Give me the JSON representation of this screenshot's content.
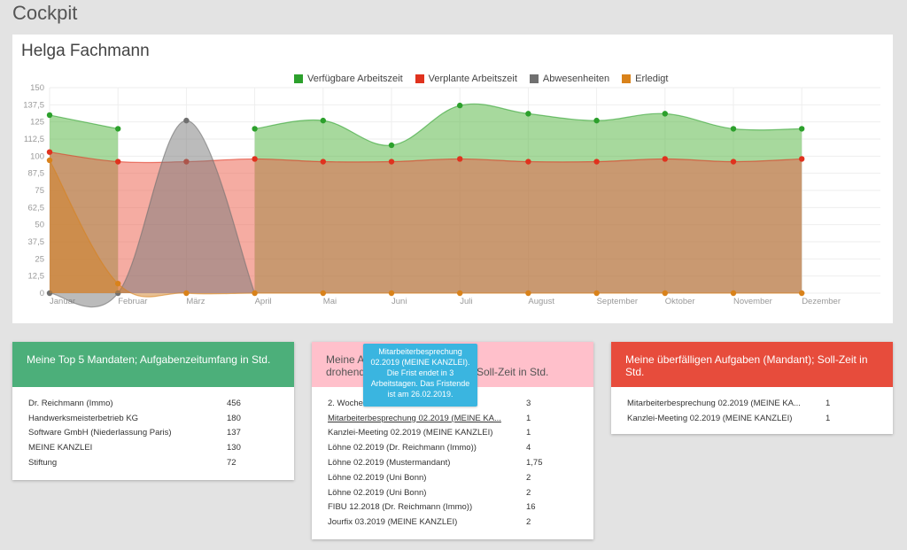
{
  "page": {
    "title": "Cockpit"
  },
  "chart_panel": {
    "heading": "Helga Fachmann"
  },
  "chart_data": {
    "type": "area",
    "categories": [
      "Januar",
      "Februar",
      "März",
      "April",
      "Mai",
      "Juni",
      "Juli",
      "August",
      "September",
      "Oktober",
      "November",
      "Dezember"
    ],
    "ylim": [
      0,
      150
    ],
    "yticks": [
      "0",
      "12,5",
      "25",
      "37,5",
      "50",
      "62,5",
      "75",
      "87,5",
      "100",
      "112,5",
      "125",
      "137,5",
      "150"
    ],
    "ytick_values": [
      0,
      12.5,
      25,
      37.5,
      50,
      62.5,
      75,
      87.5,
      100,
      112.5,
      125,
      137.5,
      150
    ],
    "grid": true,
    "legend_position": "top",
    "series": [
      {
        "name": "Verfügbare Arbeitszeit",
        "color": "#2ca02c",
        "fill": "rgba(80,180,60,0.5)",
        "values": [
          130,
          120,
          null,
          120,
          126,
          108,
          137,
          131,
          126,
          131,
          120,
          120
        ]
      },
      {
        "name": "Verplante Arbeitszeit",
        "color": "#e0321e",
        "fill": "rgba(235,90,70,0.5)",
        "values": [
          103,
          96,
          96,
          98,
          96,
          96,
          98,
          96,
          96,
          98,
          96,
          98
        ]
      },
      {
        "name": "Abwesenheiten",
        "color": "#707070",
        "fill": "rgba(120,120,120,0.5)",
        "values": [
          0,
          0,
          126,
          null,
          null,
          null,
          null,
          null,
          null,
          null,
          null,
          null
        ]
      },
      {
        "name": "Erledigt",
        "color": "#d9821a",
        "fill": "rgba(210,130,40,0.5)",
        "values": [
          97,
          7,
          0,
          0,
          0,
          0,
          0,
          0,
          0,
          0,
          0,
          0
        ]
      }
    ]
  },
  "cards": {
    "top5": {
      "title": "Meine Top 5 Mandaten; Aufgabenzeitumfang in Std.",
      "color": "#4caf7a",
      "rows": [
        {
          "name": "Dr. Reichmann (Immo)",
          "value": "456"
        },
        {
          "name": "Handwerksmeisterbetrieb KG",
          "value": "180"
        },
        {
          "name": "Software GmbH (Niederlassung Paris)",
          "value": "137"
        },
        {
          "name": "MEINE KANZLEI",
          "value": "130"
        },
        {
          "name": "Stiftung",
          "value": "72"
        }
      ]
    },
    "drohend": {
      "title_part1": "Meine A",
      "title_part2": "drohend",
      "title_part3": "Soll-Zeit in Std.",
      "color": "#ffc0cb",
      "rows": [
        {
          "name": "2. Woche",
          "value": "3"
        },
        {
          "name": "Mitarbeiterbesprechung 02.2019 (MEINE KA...",
          "value": "1"
        },
        {
          "name": "Kanzlei-Meeting 02.2019 (MEINE KANZLEI)",
          "value": "1"
        },
        {
          "name": "Löhne 02.2019 (Dr. Reichmann (Immo))",
          "value": "4"
        },
        {
          "name": "Löhne 02.2019 (Mustermandant)",
          "value": "1,75"
        },
        {
          "name": "Löhne 02.2019 (Uni Bonn)",
          "value": "2"
        },
        {
          "name": "Löhne 02.2019 (Uni Bonn)",
          "value": "2"
        },
        {
          "name": "FIBU 12.2018 (Dr. Reichmann (Immo))",
          "value": "16"
        },
        {
          "name": "Jourfix 03.2019 (MEINE KANZLEI)",
          "value": "2"
        }
      ]
    },
    "overdue": {
      "title": "Meine überfälligen Aufgaben (Mandant); Soll-Zeit in Std.",
      "color": "#e74c3c",
      "rows": [
        {
          "name": "Mitarbeiterbesprechung 02.2019 (MEINE KA...",
          "value": "1"
        },
        {
          "name": "Kanzlei-Meeting 02.2019 (MEINE KANZLEI)",
          "value": "1"
        }
      ]
    }
  },
  "tooltip": {
    "text": "Mitarbeiterbesprechung 02.2019 (MEINE KANZLEI). Die Frist endet in 3 Arbeitstagen. Das Fristende ist am 26.02.2019."
  }
}
